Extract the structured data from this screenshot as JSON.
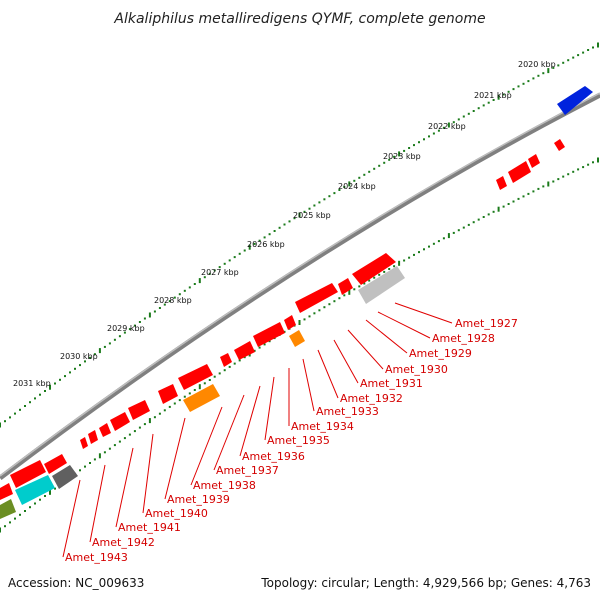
{
  "title": "Alkaliphilus metalliredigens QYMF, complete genome",
  "footer": {
    "accession": "Accession: NC_009633",
    "summary": "Topology: circular; Length: 4,929,566 bp; Genes: 4,763"
  },
  "scale_labels": [
    "2020 kbp",
    "2021 kbp",
    "2022 kbp",
    "2023 kbp",
    "2024 kbp",
    "2025 kbp",
    "2026 kbp",
    "2027 kbp",
    "2028 kbp",
    "2029 kbp",
    "2030 kbp",
    "2031 kbp"
  ],
  "gene_labels": [
    "Amet_1927",
    "Amet_1928",
    "Amet_1929",
    "Amet_1930",
    "Amet_1931",
    "Amet_1932",
    "Amet_1933",
    "Amet_1934",
    "Amet_1935",
    "Amet_1936",
    "Amet_1937",
    "Amet_1938",
    "Amet_1939",
    "Amet_1940",
    "Amet_1941",
    "Amet_1942",
    "Amet_1943"
  ],
  "colors": {
    "forward_cds": "#ff0000",
    "reverse_cds": "#ff0000",
    "rna_blue": "#0022dd",
    "orange": "#ff8800",
    "cyan": "#00cccc",
    "gray_dark": "#606060",
    "gray_light": "#c0c0c0",
    "olive": "#6b8e23",
    "ticks": "#1a7a1a",
    "backbone": "#808080",
    "label": "#d40000"
  }
}
